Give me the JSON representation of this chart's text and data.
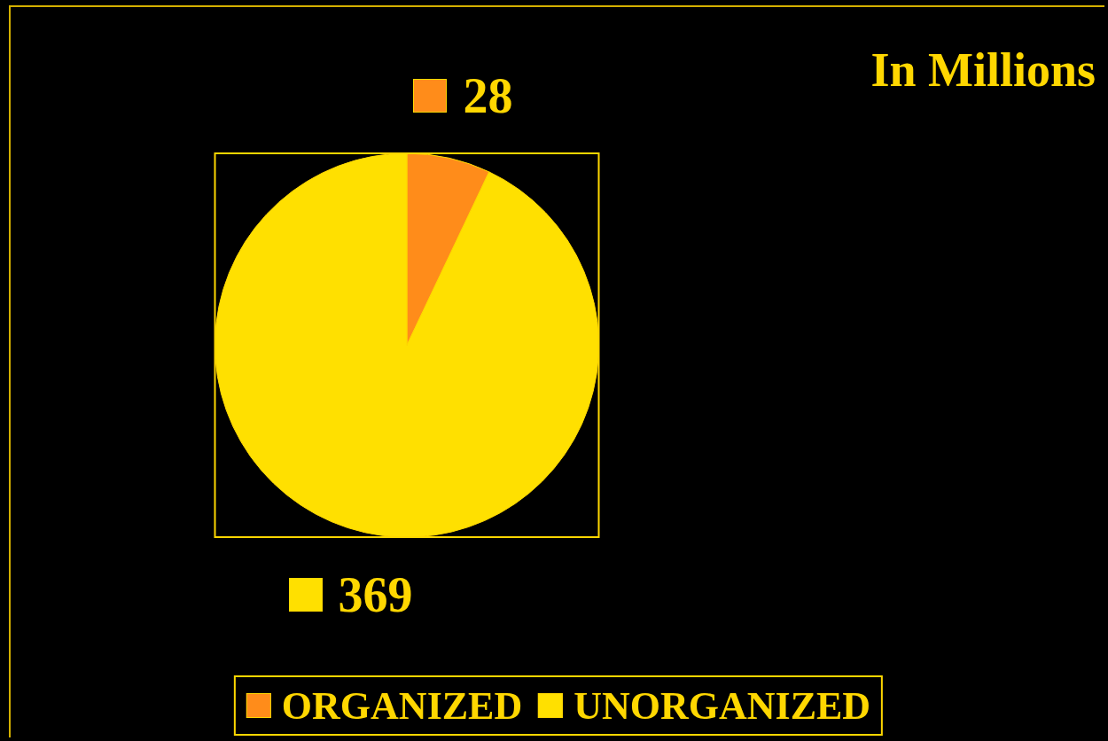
{
  "chart_data": {
    "type": "pie",
    "title": "In Millions",
    "categories": [
      "ORGANIZED",
      "UNORGANIZED"
    ],
    "values": [
      28,
      369
    ],
    "colors": [
      "#ff8c1a",
      "#ffe000"
    ],
    "data_labels": true,
    "legend": "bottom"
  }
}
